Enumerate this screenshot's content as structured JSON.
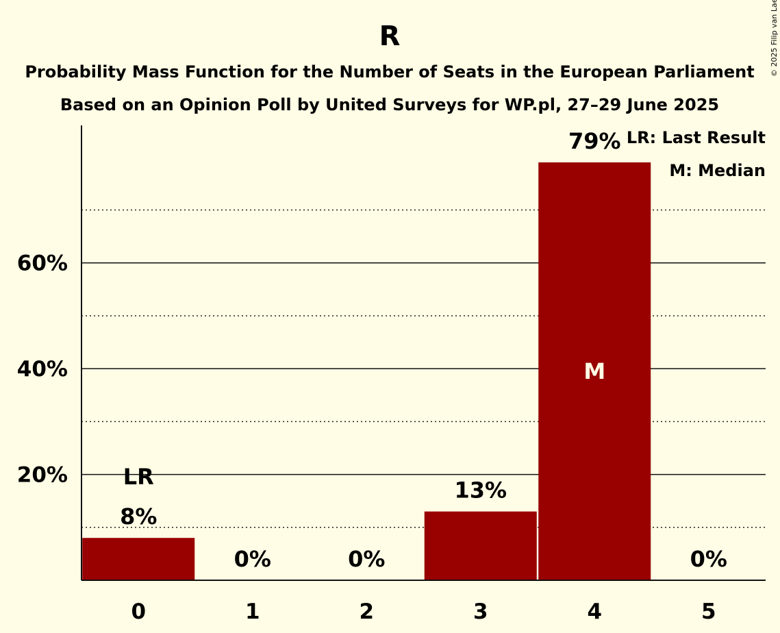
{
  "title": "R",
  "subtitle1": "Probability Mass Function for the Number of Seats in the European Parliament",
  "subtitle2": "Based on an Opinion Poll by United Surveys for WP.pl, 27–29 June 2025",
  "copyright": "© 2025 Filip van Laenen",
  "legend": {
    "last_result": "LR: Last Result",
    "median": "M: Median"
  },
  "colors": {
    "bar": "#990000",
    "background": "#FFFDE5",
    "median_text": "#FFFDE5"
  },
  "chart_data": {
    "type": "bar",
    "categories": [
      "0",
      "1",
      "2",
      "3",
      "4",
      "5"
    ],
    "values": [
      8,
      0,
      0,
      13,
      79,
      0
    ],
    "value_labels": [
      "8%",
      "0%",
      "0%",
      "13%",
      "79%",
      "0%"
    ],
    "ylim": [
      0,
      86
    ],
    "yticks": [
      20,
      40,
      60
    ],
    "ytick_labels": [
      "20%",
      "40%",
      "60%"
    ],
    "minor_gridlines": [
      10,
      30,
      50,
      70
    ],
    "last_result_category": "0",
    "last_result_marker": "LR",
    "median_category": "4",
    "median_marker": "M",
    "grid": true,
    "legend_position": "top-right"
  }
}
